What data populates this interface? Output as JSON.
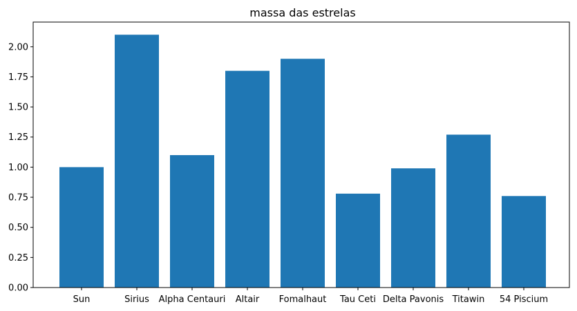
{
  "chart_data": {
    "type": "bar",
    "title": "massa das estrelas",
    "xlabel": "",
    "ylabel": "",
    "categories": [
      "Sun",
      "Sirius",
      "Alpha Centauri",
      "Altair",
      "Fomalhaut",
      "Tau Ceti",
      "Delta Pavonis",
      "Titawin",
      "54 Piscium"
    ],
    "values": [
      1.0,
      2.1,
      1.1,
      1.8,
      1.9,
      0.78,
      0.99,
      1.27,
      0.76
    ],
    "ylim": [
      0,
      2.205
    ],
    "yticks": [
      "0.00",
      "0.25",
      "0.50",
      "0.75",
      "1.00",
      "1.25",
      "1.50",
      "1.75",
      "2.00"
    ],
    "bar_color": "#1f77b4",
    "grid": false,
    "legend": "none"
  }
}
